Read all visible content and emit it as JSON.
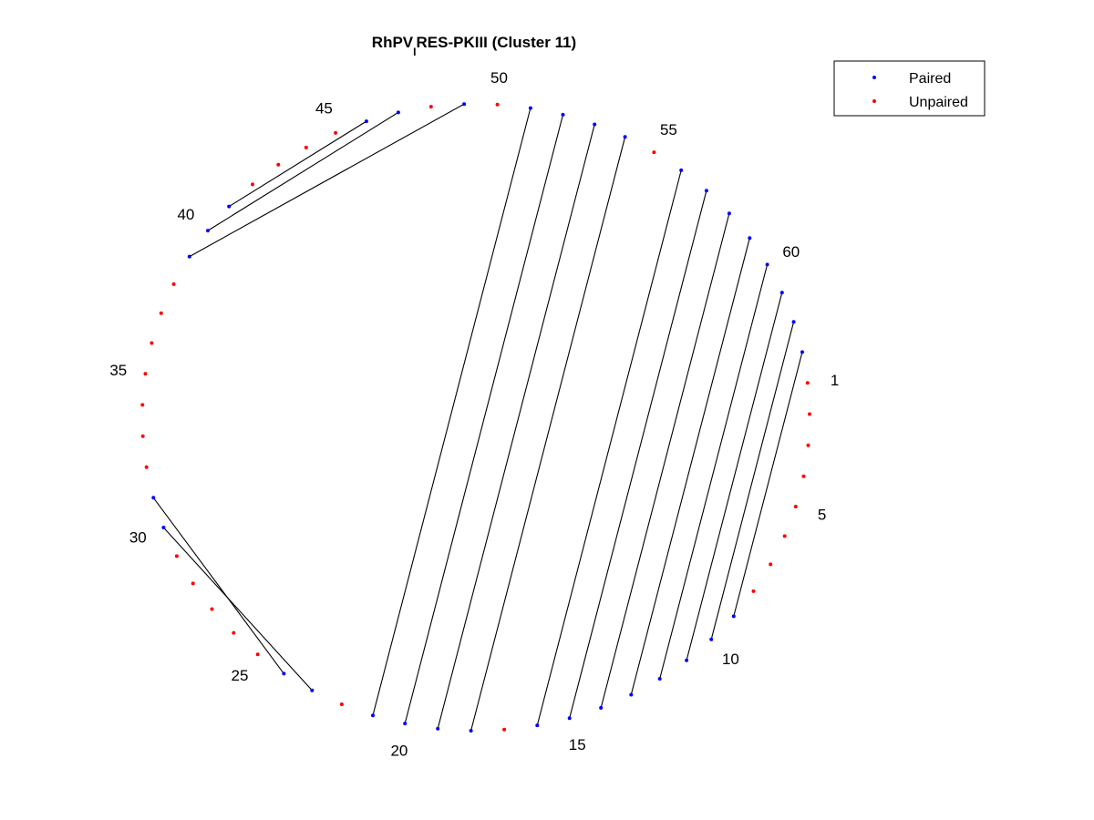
{
  "chart_data": {
    "type": "circle-plot",
    "title": {
      "prefix": "RhPV",
      "subscript": "I",
      "suffix": "RES-PKIII (Cluster 11)"
    },
    "legend": {
      "placement": "top-right",
      "entries": [
        {
          "label": "Paired",
          "color": "#0000ff"
        },
        {
          "label": "Unpaired",
          "color": "#ff0000"
        }
      ]
    },
    "n_nucleotides": 63,
    "position_labels": [
      "1",
      "5",
      "10",
      "15",
      "20",
      "25",
      "30",
      "35",
      "40",
      "45",
      "50",
      "55",
      "60"
    ],
    "pairs": [
      [
        9,
        63
      ],
      [
        10,
        62
      ],
      [
        11,
        61
      ],
      [
        12,
        60
      ],
      [
        13,
        59
      ],
      [
        14,
        58
      ],
      [
        15,
        57
      ],
      [
        16,
        56
      ],
      [
        18,
        54
      ],
      [
        19,
        53
      ],
      [
        20,
        52
      ],
      [
        21,
        51
      ],
      [
        23,
        30
      ],
      [
        24,
        31
      ],
      [
        39,
        49
      ],
      [
        40,
        47
      ],
      [
        41,
        46
      ]
    ],
    "paired_color": "#0000ff",
    "unpaired_color": "#ff0000",
    "arc_color": "#000000"
  }
}
